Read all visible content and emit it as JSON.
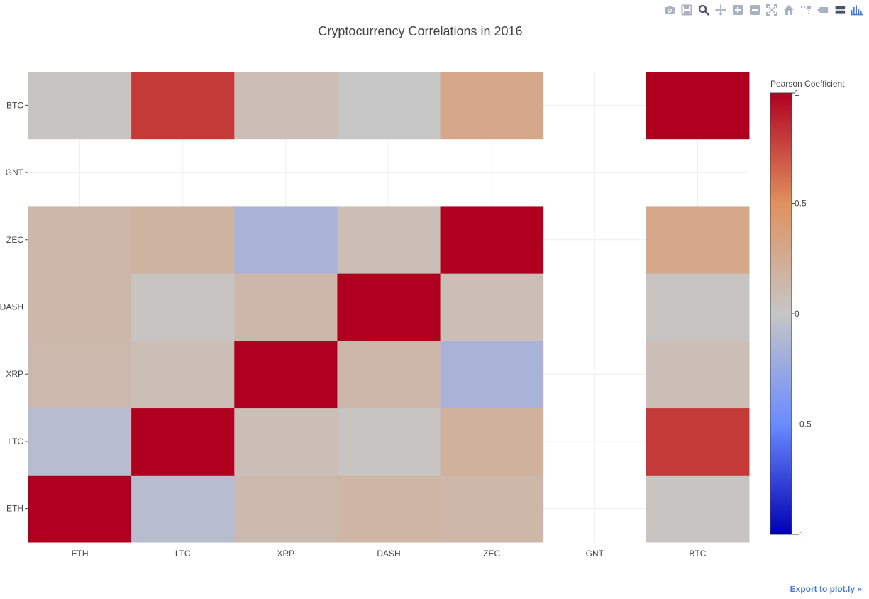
{
  "modebar": {
    "icons": [
      "camera-icon",
      "floppy-icon",
      "zoom-icon",
      "pan-icon",
      "zoom-in-icon",
      "zoom-out-icon",
      "autoscale-icon",
      "home-icon",
      "spike-lines-icon",
      "hover-closest-icon",
      "hover-compare-icon",
      "plotly-logo"
    ]
  },
  "export_link": "Export to plot.ly »",
  "chart_data": {
    "type": "heatmap",
    "title": "Cryptocurrency Correlations in 2016",
    "x": [
      "ETH",
      "LTC",
      "XRP",
      "DASH",
      "ZEC",
      "GNT",
      "BTC"
    ],
    "y": [
      "ETH",
      "LTC",
      "XRP",
      "DASH",
      "ZEC",
      "GNT",
      "BTC"
    ],
    "z": [
      [
        1.0,
        -0.08,
        0.12,
        0.16,
        0.14,
        null,
        0.02
      ],
      [
        -0.08,
        1.0,
        0.08,
        0.02,
        0.2,
        null,
        0.8
      ],
      [
        0.12,
        0.08,
        1.0,
        0.14,
        -0.16,
        null,
        0.08
      ],
      [
        0.14,
        0.02,
        0.14,
        1.0,
        0.08,
        null,
        0.02
      ],
      [
        0.14,
        0.18,
        -0.16,
        0.08,
        1.0,
        null,
        0.28
      ],
      [
        null,
        null,
        null,
        null,
        null,
        null,
        null
      ],
      [
        0.02,
        0.8,
        0.08,
        0.0,
        0.28,
        null,
        1.0
      ]
    ],
    "zmin": -1,
    "zmax": 1,
    "colorscale": [
      [
        0,
        "#0000b3"
      ],
      [
        0.25,
        "#6a8bff"
      ],
      [
        0.5,
        "#c6c6c6"
      ],
      [
        0.75,
        "#e0915f"
      ],
      [
        1,
        "#b00020"
      ]
    ],
    "colorbar": {
      "title": "Pearson Coefficient",
      "ticks": [
        1,
        0.5,
        0,
        -0.5,
        -1
      ],
      "tick_labels": [
        "1",
        "0.5",
        "0",
        "−0.5",
        "−1"
      ]
    },
    "grid": true
  }
}
